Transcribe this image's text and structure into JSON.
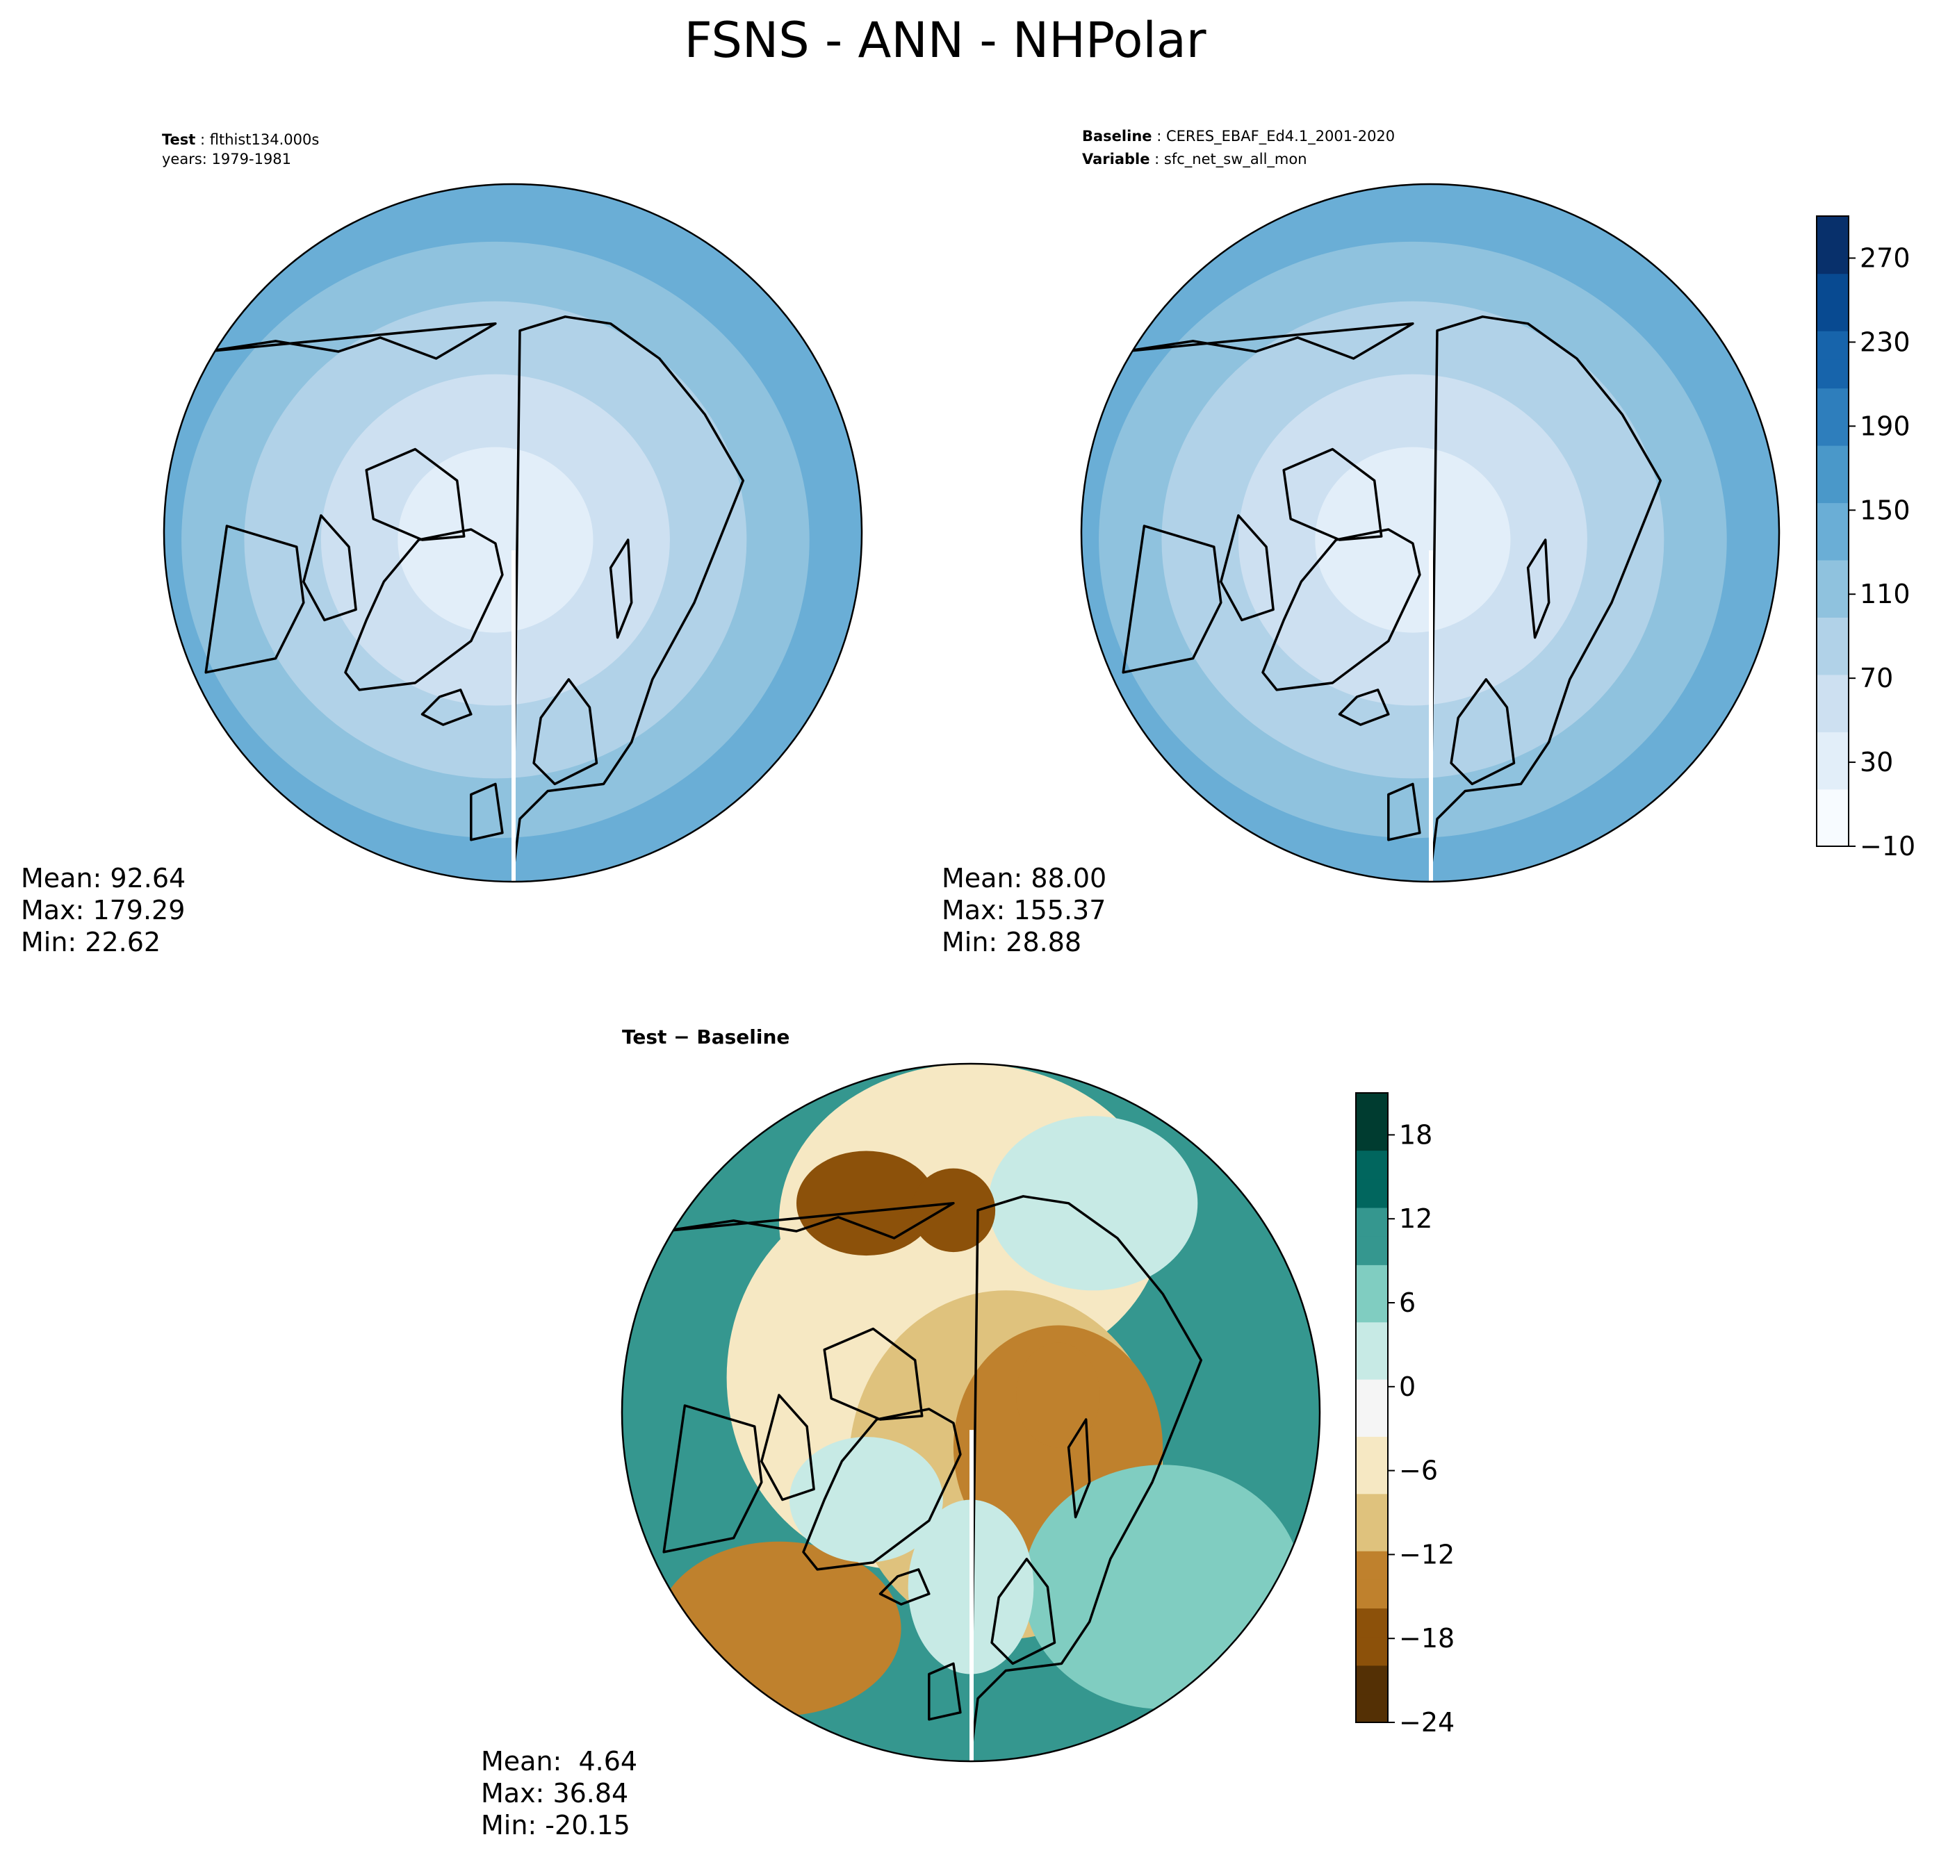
{
  "title": "FSNS - ANN - NHPolar",
  "colors": {
    "blues": [
      "#f7fbff",
      "#e2eef9",
      "#cde0f1",
      "#b1d2e8",
      "#8fc2de",
      "#6aaed6",
      "#4a98c9",
      "#2e7ebc",
      "#1764ab",
      "#084a91",
      "#08306b"
    ],
    "diff": [
      "#543005",
      "#8c510a",
      "#bf812d",
      "#dfc27d",
      "#f6e8c3",
      "#f5f5f5",
      "#c7eae5",
      "#80cdc1",
      "#35978f",
      "#01665e",
      "#003c30"
    ],
    "coast": "#000000"
  },
  "panels": [
    {
      "id": "test",
      "header_lines": [
        {
          "bold": "Test",
          "text": "flthist134.000s"
        },
        {
          "bold": "",
          "text": "years: 1979-1981"
        }
      ],
      "stats": [
        "Mean: 92.64",
        "Max: 179.29",
        "Min: 22.62"
      ]
    },
    {
      "id": "baseline",
      "header_lines": [
        {
          "bold": "Baseline",
          "text": "CERES_EBAF_Ed4.1_2001-2020"
        },
        {
          "bold": "Variable",
          "text": "sfc_net_sw_all_mon"
        }
      ],
      "stats": [
        "Mean: 88.00",
        "Max: 155.37",
        "Min: 28.88"
      ]
    },
    {
      "id": "diff",
      "header_lines": [
        {
          "bold": "Test − Baseline",
          "text": ""
        }
      ],
      "stats": [
        "Mean:  4.64",
        "Max: 36.84",
        "Min: -20.15"
      ]
    }
  ],
  "chart_data": [
    {
      "type": "heatmap",
      "panel": "Test",
      "projection": "north polar stereographic",
      "variable": "FSNS",
      "mean": 92.64,
      "max": 179.29,
      "min": 22.62,
      "colorbar": "shared with Baseline panel"
    },
    {
      "type": "heatmap",
      "panel": "Baseline",
      "projection": "north polar stereographic",
      "mean": 88.0,
      "max": 155.37,
      "min": 28.88,
      "colorbar": {
        "range": [
          -10,
          290
        ],
        "tick_labels": [
          "−10",
          "30",
          "70",
          "110",
          "150",
          "190",
          "230",
          "270"
        ],
        "tick_values": [
          -10,
          30,
          70,
          110,
          150,
          190,
          230,
          270
        ],
        "colormap": "Blues"
      }
    },
    {
      "type": "heatmap",
      "panel": "Test − Baseline",
      "projection": "north polar stereographic",
      "mean": 4.64,
      "max": 36.84,
      "min": -20.15,
      "colorbar": {
        "range": [
          -24,
          21
        ],
        "tick_labels": [
          "−24",
          "−18",
          "−12",
          "−6",
          "0",
          "6",
          "12",
          "18"
        ],
        "tick_values": [
          -24,
          -18,
          -12,
          -6,
          0,
          6,
          12,
          18
        ],
        "colormap": "BrBG"
      }
    }
  ]
}
